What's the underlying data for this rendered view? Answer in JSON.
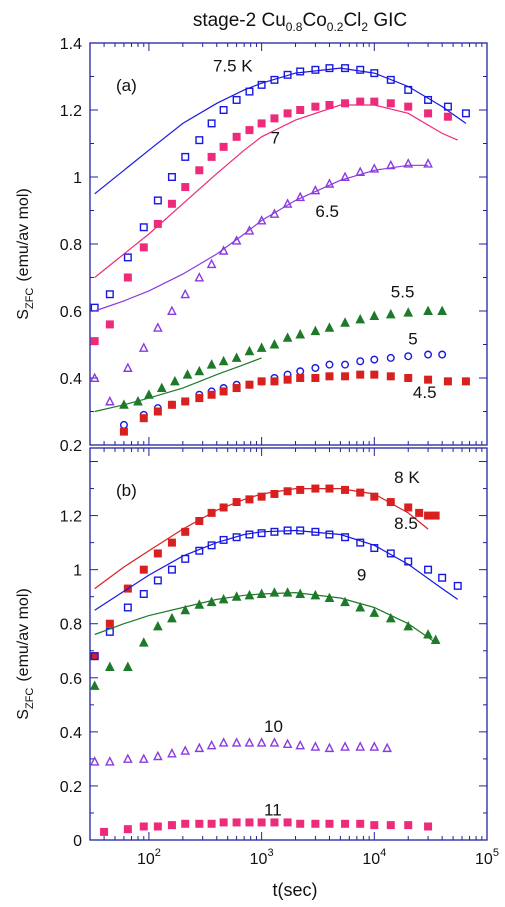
{
  "figure": {
    "title": "stage-2 Cu0.8Co0.2Cl2 GIC",
    "title_parts": {
      "pre": "stage-2 Cu",
      "sub1": "0.8",
      "mid1": "Co",
      "sub2": "0.2",
      "mid2": "Cl",
      "sub3": "2",
      "post": " GIC"
    },
    "frame_color": "#2222a0",
    "xlabel": "t(sec)"
  },
  "chart_data": [
    {
      "type": "scatter",
      "panel_label": "(a)",
      "xscale": "log",
      "xlim": [
        30,
        100000
      ],
      "ylim": [
        0.2,
        1.4
      ],
      "ylabel_main": "S",
      "ylabel_sub": "ZFC",
      "ylabel_unit": "(emu/av mol)",
      "xticks": [
        {
          "v": 100,
          "exp": "2"
        },
        {
          "v": 1000,
          "exp": "3"
        },
        {
          "v": 10000,
          "exp": "4"
        },
        {
          "v": 100000,
          "exp": "5"
        }
      ],
      "xtick_base": "10",
      "yticks": [
        {
          "v": 0.2,
          "label": "0.2"
        },
        {
          "v": 0.4,
          "label": "0.4"
        },
        {
          "v": 0.6,
          "label": "0.6"
        },
        {
          "v": 0.8,
          "label": "0.8"
        },
        {
          "v": 1.0,
          "label": "1"
        },
        {
          "v": 1.2,
          "label": "1.2"
        },
        {
          "v": 1.4,
          "label": "1.4"
        }
      ],
      "series": [
        {
          "name": "7.5 K",
          "color": "#1818e0",
          "marker": "open-square",
          "label_at": [
            370,
            1.315
          ],
          "x": [
            33,
            45,
            65,
            90,
            120,
            160,
            210,
            280,
            360,
            460,
            600,
            780,
            1000,
            1300,
            1700,
            2200,
            3000,
            4000,
            5500,
            7500,
            10000,
            14000,
            20000,
            30000,
            45000,
            65000
          ],
          "y": [
            0.61,
            0.65,
            0.76,
            0.85,
            0.93,
            1.0,
            1.06,
            1.11,
            1.16,
            1.2,
            1.23,
            1.255,
            1.275,
            1.29,
            1.305,
            1.315,
            1.32,
            1.325,
            1.325,
            1.32,
            1.31,
            1.29,
            1.26,
            1.23,
            1.21,
            1.19
          ],
          "fit_x": [
            33,
            60,
            100,
            200,
            400,
            700,
            1000,
            2000,
            5000,
            10000,
            20000,
            40000,
            65000
          ],
          "fit_y": [
            0.95,
            1.02,
            1.08,
            1.16,
            1.22,
            1.26,
            1.28,
            1.31,
            1.325,
            1.31,
            1.27,
            1.21,
            1.16
          ]
        },
        {
          "name": "7",
          "color": "#ee2a7b",
          "marker": "filled-square",
          "label_at": [
            1200,
            1.1
          ],
          "x": [
            33,
            45,
            65,
            90,
            120,
            160,
            210,
            280,
            360,
            460,
            600,
            780,
            1000,
            1300,
            1700,
            2200,
            3000,
            4000,
            5500,
            7500,
            10000,
            14000,
            20000,
            30000,
            45000
          ],
          "y": [
            0.51,
            0.56,
            0.7,
            0.79,
            0.86,
            0.92,
            0.97,
            1.02,
            1.06,
            1.09,
            1.12,
            1.14,
            1.16,
            1.175,
            1.19,
            1.2,
            1.21,
            1.215,
            1.22,
            1.225,
            1.225,
            1.22,
            1.21,
            1.19,
            1.18
          ],
          "fit_x": [
            33,
            60,
            100,
            200,
            400,
            700,
            1000,
            2000,
            5000,
            10000,
            20000,
            40000,
            55000
          ],
          "fit_y": [
            0.7,
            0.77,
            0.83,
            0.92,
            1.01,
            1.08,
            1.12,
            1.17,
            1.215,
            1.215,
            1.19,
            1.13,
            1.11
          ]
        },
        {
          "name": "6.5",
          "color": "#8a3ae0",
          "marker": "open-triangle",
          "label_at": [
            3000,
            0.88
          ],
          "x": [
            33,
            45,
            65,
            90,
            120,
            160,
            210,
            280,
            360,
            460,
            600,
            780,
            1000,
            1300,
            1700,
            2200,
            3000,
            4000,
            5500,
            7500,
            10000,
            14000,
            20000,
            30000
          ],
          "y": [
            0.4,
            0.33,
            0.43,
            0.49,
            0.55,
            0.6,
            0.65,
            0.7,
            0.74,
            0.78,
            0.81,
            0.84,
            0.87,
            0.89,
            0.92,
            0.94,
            0.96,
            0.98,
            1.0,
            1.015,
            1.025,
            1.035,
            1.04,
            1.04
          ],
          "fit_x": [
            33,
            60,
            100,
            200,
            400,
            700,
            1000,
            2000,
            5000,
            10000,
            20000,
            30000
          ],
          "fit_y": [
            0.6,
            0.63,
            0.66,
            0.71,
            0.77,
            0.83,
            0.87,
            0.93,
            0.99,
            1.02,
            1.035,
            1.035
          ]
        },
        {
          "name": "5.5",
          "color": "#1e7a2a",
          "marker": "filled-triangle",
          "label_at": [
            14000,
            0.64
          ],
          "x": [
            60,
            80,
            100,
            130,
            170,
            220,
            280,
            360,
            460,
            600,
            780,
            1000,
            1300,
            1700,
            2200,
            3000,
            4000,
            5500,
            7500,
            10000,
            14000,
            20000,
            30000,
            40000
          ],
          "y": [
            0.32,
            0.33,
            0.35,
            0.37,
            0.39,
            0.41,
            0.42,
            0.44,
            0.45,
            0.46,
            0.48,
            0.49,
            0.5,
            0.52,
            0.53,
            0.54,
            0.55,
            0.565,
            0.575,
            0.585,
            0.59,
            0.595,
            0.6,
            0.6
          ],
          "fit_x": [
            33,
            60,
            100,
            200,
            400,
            700,
            1000
          ],
          "fit_y": [
            0.3,
            0.32,
            0.34,
            0.37,
            0.41,
            0.44,
            0.46
          ]
        },
        {
          "name": "5",
          "color": "#1818e0",
          "marker": "open-circle",
          "label_at": [
            20000,
            0.5
          ],
          "x": [
            60,
            90,
            120,
            160,
            210,
            280,
            360,
            460,
            600,
            780,
            1000,
            1300,
            1700,
            2200,
            3000,
            4000,
            5500,
            7500,
            10000,
            14000,
            20000,
            30000,
            40000
          ],
          "y": [
            0.26,
            0.29,
            0.31,
            0.32,
            0.33,
            0.35,
            0.36,
            0.37,
            0.38,
            0.38,
            0.39,
            0.4,
            0.41,
            0.42,
            0.43,
            0.44,
            0.44,
            0.45,
            0.455,
            0.46,
            0.465,
            0.47,
            0.47
          ],
          "fit_x": [],
          "fit_y": []
        },
        {
          "name": "4.5",
          "color": "#d82020",
          "marker": "filled-square",
          "label_at": [
            22000,
            0.34
          ],
          "x": [
            60,
            90,
            120,
            160,
            210,
            280,
            360,
            460,
            600,
            780,
            1000,
            1300,
            1700,
            2200,
            3000,
            4000,
            5500,
            7500,
            10000,
            14000,
            20000,
            30000,
            45000,
            65000
          ],
          "y": [
            0.24,
            0.28,
            0.3,
            0.32,
            0.33,
            0.34,
            0.35,
            0.36,
            0.37,
            0.38,
            0.39,
            0.39,
            0.395,
            0.4,
            0.4,
            0.405,
            0.405,
            0.41,
            0.41,
            0.405,
            0.4,
            0.395,
            0.39,
            0.39
          ],
          "fit_x": [],
          "fit_y": []
        }
      ]
    },
    {
      "type": "scatter",
      "panel_label": "(b)",
      "xscale": "log",
      "xlim": [
        30,
        100000
      ],
      "ylim": [
        0,
        1.45
      ],
      "ylabel_main": "S",
      "ylabel_sub": "ZFC",
      "ylabel_unit": "(emu/av mol)",
      "xticks": [
        {
          "v": 100,
          "exp": "2"
        },
        {
          "v": 1000,
          "exp": "3"
        },
        {
          "v": 10000,
          "exp": "4"
        },
        {
          "v": 100000,
          "exp": "5"
        }
      ],
      "xtick_base": "10",
      "yticks": [
        {
          "v": 0,
          "label": "0"
        },
        {
          "v": 0.2,
          "label": "0.2"
        },
        {
          "v": 0.4,
          "label": "0.4"
        },
        {
          "v": 0.6,
          "label": "0.6"
        },
        {
          "v": 0.8,
          "label": "0.8"
        },
        {
          "v": 1.0,
          "label": "1"
        },
        {
          "v": 1.2,
          "label": "1.2"
        }
      ],
      "series": [
        {
          "name": "8 K",
          "color": "#d82020",
          "marker": "filled-square",
          "label_at": [
            15000,
            1.32
          ],
          "x": [
            33,
            45,
            65,
            90,
            120,
            160,
            210,
            280,
            360,
            460,
            600,
            780,
            1000,
            1300,
            1700,
            2200,
            3000,
            4000,
            5500,
            7500,
            10000,
            14000,
            20000,
            25000,
            30000,
            35000
          ],
          "y": [
            0.68,
            0.8,
            0.93,
            1.0,
            1.06,
            1.1,
            1.14,
            1.18,
            1.21,
            1.23,
            1.25,
            1.26,
            1.27,
            1.28,
            1.29,
            1.295,
            1.3,
            1.3,
            1.295,
            1.285,
            1.27,
            1.25,
            1.23,
            1.21,
            1.2,
            1.2
          ],
          "fit_x": [
            33,
            60,
            100,
            200,
            400,
            700,
            1000,
            2000,
            5000,
            10000,
            20000,
            30000
          ],
          "fit_y": [
            0.93,
            1.01,
            1.07,
            1.15,
            1.22,
            1.26,
            1.28,
            1.3,
            1.3,
            1.28,
            1.21,
            1.15
          ]
        },
        {
          "name": "8.5",
          "color": "#1818e0",
          "marker": "open-square",
          "label_at": [
            15000,
            1.15
          ],
          "x": [
            33,
            45,
            65,
            90,
            120,
            160,
            210,
            280,
            360,
            460,
            600,
            780,
            1000,
            1300,
            1700,
            2200,
            3000,
            4000,
            5500,
            7500,
            10000,
            14000,
            20000,
            30000,
            40000,
            55000
          ],
          "y": [
            0.68,
            0.77,
            0.86,
            0.91,
            0.96,
            1.0,
            1.04,
            1.07,
            1.09,
            1.11,
            1.12,
            1.13,
            1.135,
            1.14,
            1.145,
            1.145,
            1.14,
            1.13,
            1.12,
            1.1,
            1.08,
            1.06,
            1.03,
            1.0,
            0.97,
            0.94
          ],
          "fit_x": [
            33,
            60,
            100,
            200,
            400,
            700,
            1000,
            2000,
            5000,
            10000,
            20000,
            40000,
            55000
          ],
          "fit_y": [
            0.85,
            0.92,
            0.98,
            1.05,
            1.1,
            1.13,
            1.14,
            1.145,
            1.13,
            1.09,
            1.02,
            0.93,
            0.89
          ]
        },
        {
          "name": "9",
          "color": "#1e7a2a",
          "marker": "filled-triangle",
          "label_at": [
            7000,
            0.96
          ],
          "x": [
            33,
            45,
            65,
            90,
            120,
            160,
            210,
            280,
            360,
            460,
            600,
            780,
            1000,
            1300,
            1700,
            2200,
            3000,
            4000,
            5500,
            7500,
            10000,
            14000,
            20000,
            30000,
            35000
          ],
          "y": [
            0.57,
            0.64,
            0.64,
            0.73,
            0.79,
            0.82,
            0.85,
            0.87,
            0.88,
            0.89,
            0.9,
            0.905,
            0.91,
            0.915,
            0.915,
            0.91,
            0.905,
            0.895,
            0.88,
            0.86,
            0.84,
            0.82,
            0.79,
            0.76,
            0.74
          ],
          "fit_x": [
            33,
            60,
            100,
            200,
            400,
            700,
            1000,
            2000,
            5000,
            10000,
            20000,
            35000
          ],
          "fit_y": [
            0.76,
            0.8,
            0.83,
            0.86,
            0.89,
            0.905,
            0.91,
            0.915,
            0.895,
            0.86,
            0.8,
            0.73
          ]
        },
        {
          "name": "10",
          "color": "#8a3ae0",
          "marker": "open-triangle",
          "label_at": [
            1050,
            0.4
          ],
          "x": [
            33,
            45,
            65,
            90,
            120,
            160,
            210,
            280,
            360,
            460,
            600,
            780,
            1000,
            1300,
            1700,
            2200,
            3000,
            4000,
            5500,
            7500,
            10000,
            13000
          ],
          "y": [
            0.29,
            0.29,
            0.3,
            0.3,
            0.31,
            0.32,
            0.33,
            0.34,
            0.35,
            0.36,
            0.36,
            0.36,
            0.36,
            0.36,
            0.355,
            0.35,
            0.345,
            0.34,
            0.345,
            0.345,
            0.345,
            0.34
          ],
          "fit_x": [],
          "fit_y": []
        },
        {
          "name": "11",
          "color": "#ee2a7b",
          "marker": "filled-square",
          "label_at": [
            1050,
            0.09
          ],
          "x": [
            40,
            65,
            90,
            120,
            160,
            210,
            280,
            360,
            460,
            600,
            780,
            1000,
            1300,
            1700,
            2200,
            3000,
            4000,
            5500,
            7500,
            10000,
            14000,
            20000,
            30000
          ],
          "y": [
            0.03,
            0.04,
            0.05,
            0.05,
            0.055,
            0.06,
            0.06,
            0.06,
            0.065,
            0.065,
            0.065,
            0.065,
            0.065,
            0.065,
            0.06,
            0.06,
            0.06,
            0.06,
            0.06,
            0.055,
            0.055,
            0.055,
            0.05
          ],
          "fit_x": [],
          "fit_y": []
        }
      ]
    }
  ]
}
